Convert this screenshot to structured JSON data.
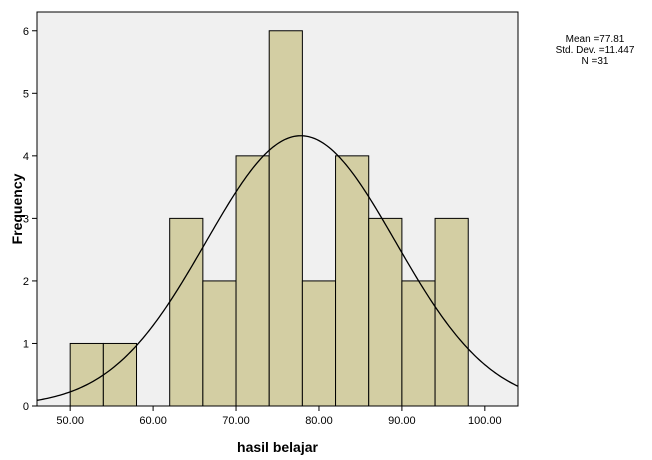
{
  "chart_data": {
    "type": "bar",
    "title": "",
    "xlabel": "hasil belajar",
    "ylabel": "Frequency",
    "xlim": [
      46,
      104
    ],
    "ylim": [
      0,
      6.3
    ],
    "x_ticks": [
      "50.00",
      "60.00",
      "70.00",
      "80.00",
      "90.00",
      "100.00"
    ],
    "y_ticks": [
      "0",
      "1",
      "2",
      "3",
      "4",
      "5",
      "6"
    ],
    "bins": [
      {
        "start": 50,
        "end": 54,
        "count": 1
      },
      {
        "start": 54,
        "end": 58,
        "count": 1
      },
      {
        "start": 62,
        "end": 66,
        "count": 3
      },
      {
        "start": 66,
        "end": 70,
        "count": 2
      },
      {
        "start": 70,
        "end": 74,
        "count": 4
      },
      {
        "start": 74,
        "end": 78,
        "count": 6
      },
      {
        "start": 78,
        "end": 82,
        "count": 2
      },
      {
        "start": 82,
        "end": 86,
        "count": 4
      },
      {
        "start": 86,
        "end": 90,
        "count": 3
      },
      {
        "start": 90,
        "end": 94,
        "count": 2
      },
      {
        "start": 94,
        "end": 98,
        "count": 3
      }
    ],
    "normal_curve": {
      "mean": 77.81,
      "sd": 11.447,
      "n": 31,
      "bin_width": 4
    },
    "stats_text": [
      "Mean =77.81",
      "Std. Dev. =11.447",
      "N =31"
    ],
    "colors": {
      "bar_fill": "#d3cea3",
      "bar_stroke": "#000000",
      "plot_bg": "#f0f0f0",
      "curve": "#000000"
    }
  }
}
